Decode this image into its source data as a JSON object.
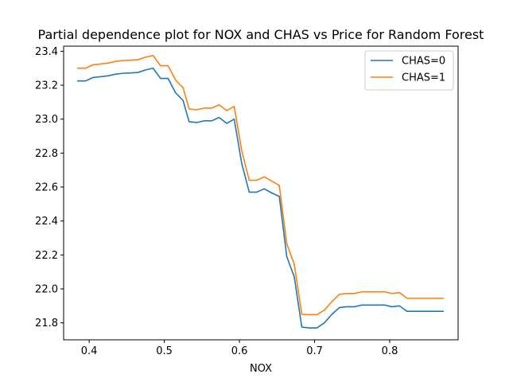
{
  "chart_data": {
    "type": "line",
    "title": "Partial dependence plot for NOX and CHAS vs Price for Random Forest",
    "xlabel": "NOX",
    "ylabel": "",
    "xlim": [
      0.366,
      0.891
    ],
    "ylim": [
      21.7,
      23.43
    ],
    "xticks": [
      0.4,
      0.5,
      0.6,
      0.7,
      0.8
    ],
    "xtick_labels": [
      "0.4",
      "0.5",
      "0.6",
      "0.7",
      "0.8"
    ],
    "yticks": [
      21.8,
      22.0,
      22.2,
      22.4,
      22.6,
      22.8,
      23.0,
      23.2,
      23.4
    ],
    "ytick_labels": [
      "21.8",
      "22.0",
      "22.2",
      "22.4",
      "22.6",
      "22.8",
      "23.0",
      "23.2",
      "23.4"
    ],
    "grid": false,
    "legend_position": "top-right",
    "x": [
      0.385,
      0.395,
      0.405,
      0.415,
      0.425,
      0.435,
      0.445,
      0.455,
      0.465,
      0.475,
      0.485,
      0.495,
      0.505,
      0.515,
      0.525,
      0.533,
      0.543,
      0.553,
      0.563,
      0.573,
      0.583,
      0.593,
      0.603,
      0.613,
      0.623,
      0.633,
      0.643,
      0.653,
      0.663,
      0.673,
      0.683,
      0.693,
      0.703,
      0.713,
      0.723,
      0.733,
      0.743,
      0.753,
      0.763,
      0.773,
      0.783,
      0.793,
      0.803,
      0.813,
      0.823,
      0.833,
      0.843,
      0.853,
      0.863,
      0.871
    ],
    "series": [
      {
        "name": "CHAS=0",
        "color": "#1f77b4",
        "values": [
          23.225,
          23.225,
          23.245,
          23.25,
          23.255,
          23.265,
          23.27,
          23.272,
          23.275,
          23.29,
          23.3,
          23.24,
          23.24,
          23.155,
          23.11,
          22.985,
          22.98,
          22.99,
          22.99,
          23.01,
          22.975,
          23.0,
          22.74,
          22.57,
          22.57,
          22.59,
          22.565,
          22.545,
          22.19,
          22.07,
          21.775,
          21.77,
          21.77,
          21.8,
          21.85,
          21.89,
          21.895,
          21.895,
          21.905,
          21.905,
          21.905,
          21.905,
          21.895,
          21.9,
          21.868,
          21.868,
          21.868,
          21.868,
          21.868,
          21.868
        ]
      },
      {
        "name": "CHAS=1",
        "color": "#ff7f0e",
        "values": [
          23.3,
          23.3,
          23.32,
          23.325,
          23.33,
          23.34,
          23.345,
          23.347,
          23.35,
          23.365,
          23.375,
          23.315,
          23.315,
          23.23,
          23.185,
          23.06,
          23.055,
          23.065,
          23.065,
          23.085,
          23.05,
          23.075,
          22.815,
          22.64,
          22.64,
          22.66,
          22.635,
          22.61,
          22.265,
          22.145,
          21.85,
          21.848,
          21.848,
          21.875,
          21.925,
          21.968,
          21.973,
          21.973,
          21.983,
          21.983,
          21.983,
          21.983,
          21.973,
          21.978,
          21.945,
          21.945,
          21.945,
          21.945,
          21.945,
          21.945
        ]
      }
    ]
  }
}
